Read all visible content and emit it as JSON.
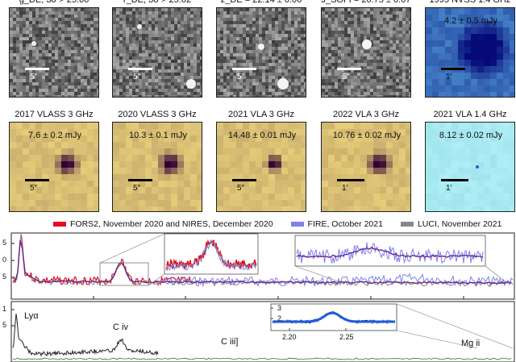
{
  "colors": {
    "fors2_nires": "#e3101e",
    "fire": "#7f7ff0",
    "luci": "#888888",
    "model": "#1e5be0",
    "data_dark": "#222222"
  },
  "row1": [
    {
      "title": "g_DE, 3σ > 25.66",
      "label": "5″",
      "colormap": "grey"
    },
    {
      "title": "r_DE, 3σ > 25.02",
      "label": "5″",
      "colormap": "grey"
    },
    {
      "title": "z_DE = 22.14 ± 0.06",
      "label": "5″",
      "colormap": "grey"
    },
    {
      "title": "J_SOFI = 20.75 ± 0.07",
      "label": "5″",
      "colormap": "grey"
    },
    {
      "title": "1995 NVSS 1.4 GHz",
      "flux": "4.2 ± 0.5 mJy",
      "label": "1′",
      "colormap": "blue"
    }
  ],
  "row2": [
    {
      "title": "2017 VLASS 3 GHz",
      "flux": "7.6 ± 0.2 mJy",
      "label": "5″",
      "colormap": "yellow"
    },
    {
      "title": "2020 VLASS 3 GHz",
      "flux": "10.3 ± 0.1 mJy",
      "label": "5″",
      "colormap": "yellow"
    },
    {
      "title": "2021 VLA 3 GHz",
      "flux": "14.48 ± 0.01 mJy",
      "label": "5″",
      "colormap": "yellow"
    },
    {
      "title": "2022 VLA 3 GHz",
      "flux": "10.76 ± 0.02 mJy",
      "label": "1′",
      "colormap": "yellow"
    },
    {
      "title": "2021 VLA 1.4 GHz",
      "flux": "8.12 ± 0.02 mJy",
      "label": "1′",
      "colormap": "cyan"
    }
  ],
  "legend": [
    {
      "label": "FORS2, November 2020 and NIRES, December 2020",
      "color": "#e3101e"
    },
    {
      "label": "FIRE, October 2021",
      "color": "#7f7ff0"
    },
    {
      "label": "LUCI, November 2021",
      "color": "#888888"
    }
  ],
  "spectrum": {
    "yticks_top": [
      "5",
      "0",
      "5"
    ],
    "yticks_bottom": [
      "1",
      "5"
    ],
    "lines": [
      "Lyα",
      "C iv",
      "C iii]",
      "Mg ii"
    ],
    "inset": {
      "yticks": [
        "3",
        "2"
      ],
      "xticks": [
        "2.20",
        "2.25"
      ]
    }
  }
}
